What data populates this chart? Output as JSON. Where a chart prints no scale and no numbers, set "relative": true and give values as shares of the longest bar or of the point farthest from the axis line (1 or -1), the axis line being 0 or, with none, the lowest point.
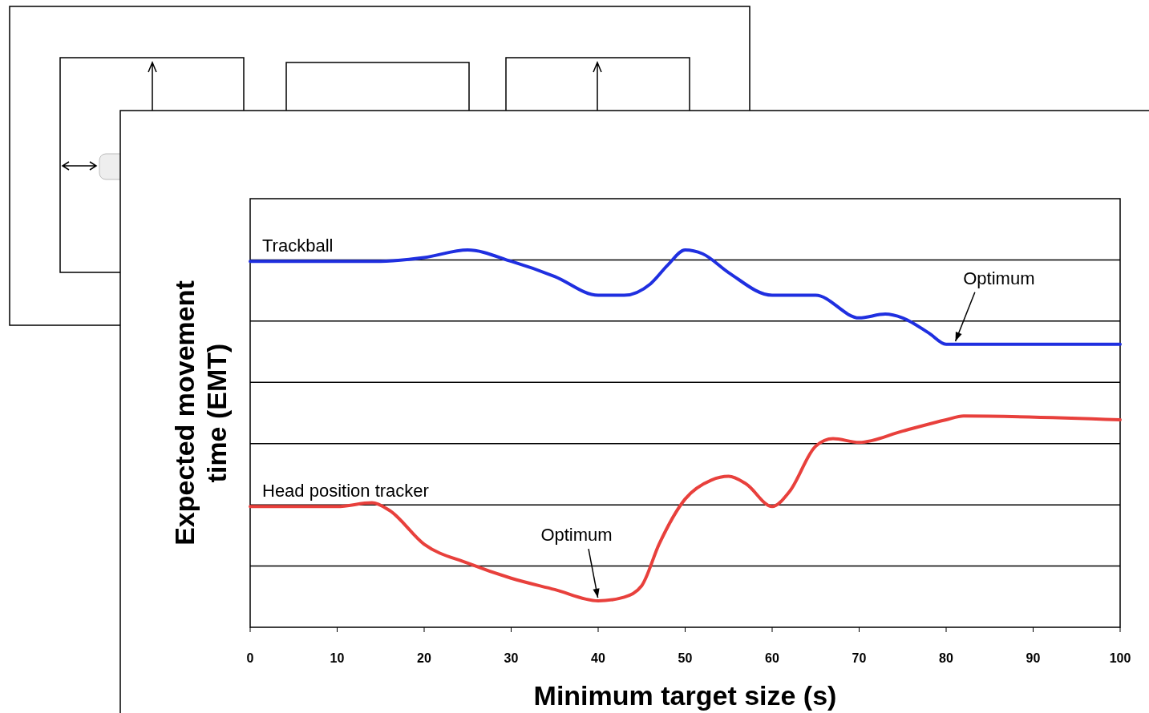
{
  "chart_data": {
    "type": "line",
    "relative": true,
    "xlabel": "Minimum target size (s)",
    "ylabel": "Expected movement time (EMT)",
    "xlim": [
      0,
      100
    ],
    "xticks": [
      0,
      10,
      20,
      30,
      40,
      50,
      60,
      70,
      80,
      90,
      100
    ],
    "grid": "y",
    "legend": false,
    "line_style": "solid",
    "series": [
      {
        "name": "Trackball",
        "color": "#1f2fe0",
        "x": [
          0,
          10,
          15,
          20,
          25,
          30,
          35,
          40,
          43,
          46,
          48,
          50,
          52,
          55,
          60,
          63,
          65,
          70,
          73,
          75,
          78,
          80,
          83,
          85,
          100
        ],
        "values": [
          0.97,
          0.97,
          0.97,
          0.98,
          1.0,
          0.97,
          0.93,
          0.88,
          0.88,
          0.91,
          0.96,
          1.0,
          0.99,
          0.94,
          0.88,
          0.88,
          0.88,
          0.82,
          0.83,
          0.82,
          0.78,
          0.75,
          0.75,
          0.75,
          0.75
        ]
      },
      {
        "name": "Head position tracker",
        "color": "#e8403c",
        "x": [
          0,
          10,
          14,
          16,
          20,
          25,
          30,
          35,
          40,
          43,
          45,
          47,
          50,
          53,
          55,
          57,
          60,
          62,
          65,
          67,
          70,
          75,
          80,
          82,
          100
        ],
        "values": [
          0.32,
          0.32,
          0.33,
          0.31,
          0.22,
          0.17,
          0.13,
          0.1,
          0.07,
          0.08,
          0.11,
          0.22,
          0.34,
          0.39,
          0.4,
          0.38,
          0.32,
          0.36,
          0.48,
          0.5,
          0.49,
          0.52,
          0.55,
          0.56,
          0.55
        ]
      }
    ],
    "annotations": [
      {
        "text": "Optimum",
        "x": 81,
        "y": 0.75
      },
      {
        "text": "Optimum",
        "x": 40,
        "y": 0.07
      }
    ]
  }
}
